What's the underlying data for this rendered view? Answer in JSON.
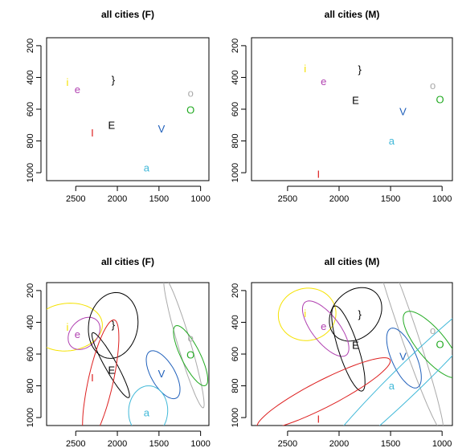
{
  "chart_data": [
    {
      "type": "scatter",
      "title": "all cities (F)",
      "xlim": [
        2850,
        900
      ],
      "ylim": [
        1050,
        150
      ],
      "x_ticks": [
        2500,
        2000,
        1500,
        1000
      ],
      "y_ticks": [
        200,
        400,
        600,
        800,
        1000
      ],
      "points": [
        {
          "label": "i",
          "x": 2600,
          "y": 430,
          "color": "#f5e200"
        },
        {
          "label": "e",
          "x": 2480,
          "y": 475,
          "color": "#b040b0"
        },
        {
          "label": "}",
          "x": 2050,
          "y": 415,
          "color": "#000000"
        },
        {
          "label": "o",
          "x": 1120,
          "y": 500,
          "color": "#aaaaaa"
        },
        {
          "label": "O",
          "x": 1120,
          "y": 605,
          "color": "#22aa22"
        },
        {
          "label": "E",
          "x": 2070,
          "y": 700,
          "color": "#000000"
        },
        {
          "label": "I",
          "x": 2300,
          "y": 750,
          "color": "#dd2020"
        },
        {
          "label": "V",
          "x": 1470,
          "y": 725,
          "color": "#2060bb"
        },
        {
          "label": "a",
          "x": 1650,
          "y": 970,
          "color": "#40b8d8"
        }
      ],
      "ellipses": []
    },
    {
      "type": "scatter",
      "title": "all cities (M)",
      "xlim": [
        2850,
        900
      ],
      "ylim": [
        1050,
        150
      ],
      "x_ticks": [
        2500,
        2000,
        1500,
        1000
      ],
      "y_ticks": [
        200,
        400,
        600,
        800,
        1000
      ],
      "points": [
        {
          "label": "i",
          "x": 2330,
          "y": 345,
          "color": "#f5e200"
        },
        {
          "label": "}",
          "x": 1800,
          "y": 350,
          "color": "#000000"
        },
        {
          "label": "e",
          "x": 2150,
          "y": 425,
          "color": "#b040b0"
        },
        {
          "label": "o",
          "x": 1090,
          "y": 450,
          "color": "#aaaaaa"
        },
        {
          "label": "E",
          "x": 1840,
          "y": 545,
          "color": "#000000"
        },
        {
          "label": "O",
          "x": 1020,
          "y": 540,
          "color": "#22aa22"
        },
        {
          "label": "V",
          "x": 1380,
          "y": 615,
          "color": "#2060bb"
        },
        {
          "label": "a",
          "x": 1490,
          "y": 800,
          "color": "#40b8d8"
        },
        {
          "label": "I",
          "x": 2200,
          "y": 1010,
          "color": "#dd2020"
        }
      ],
      "ellipses": []
    },
    {
      "type": "scatter",
      "title": "all cities (F)",
      "xlim": [
        2850,
        900
      ],
      "ylim": [
        1050,
        150
      ],
      "x_ticks": [
        2500,
        2000,
        1500,
        1000
      ],
      "y_ticks": [
        200,
        400,
        600,
        800,
        1000
      ],
      "points": [
        {
          "label": "i",
          "x": 2600,
          "y": 430,
          "color": "#f5e200"
        },
        {
          "label": "e",
          "x": 2480,
          "y": 475,
          "color": "#b040b0"
        },
        {
          "label": "}",
          "x": 2050,
          "y": 415,
          "color": "#000000"
        },
        {
          "label": "o",
          "x": 1120,
          "y": 500,
          "color": "#aaaaaa"
        },
        {
          "label": "O",
          "x": 1120,
          "y": 605,
          "color": "#22aa22"
        },
        {
          "label": "E",
          "x": 2070,
          "y": 700,
          "color": "#000000"
        },
        {
          "label": "I",
          "x": 2300,
          "y": 750,
          "color": "#dd2020"
        },
        {
          "label": "V",
          "x": 1470,
          "y": 725,
          "color": "#2060bb"
        },
        {
          "label": "a",
          "x": 1650,
          "y": 970,
          "color": "#40b8d8"
        }
      ],
      "ellipses": [
        {
          "label": "i",
          "cx": 2600,
          "cy": 430,
          "ra": 150,
          "rb": 420,
          "angle": 88,
          "color": "#f5e200"
        },
        {
          "label": "e",
          "cx": 2400,
          "cy": 470,
          "ra": 95,
          "rb": 195,
          "angle": 78,
          "color": "#b040b0"
        },
        {
          "label": "}",
          "cx": 2050,
          "cy": 420,
          "ra": 205,
          "rb": 300,
          "angle": 82,
          "color": "#000000"
        },
        {
          "label": "o",
          "cx": 1200,
          "cy": 530,
          "ra": 70,
          "rb": 470,
          "angle": -30,
          "color": "#aaaaaa"
        },
        {
          "label": "O",
          "cx": 1120,
          "cy": 610,
          "ra": 90,
          "rb": 265,
          "angle": -48,
          "color": "#22aa22"
        },
        {
          "label": "E",
          "cx": 2080,
          "cy": 670,
          "ra": 55,
          "rb": 300,
          "angle": -48,
          "color": "#000000"
        },
        {
          "label": "I",
          "cx": 2200,
          "cy": 770,
          "ra": 140,
          "rb": 420,
          "angle": 25,
          "color": "#dd2020"
        },
        {
          "label": "V",
          "cx": 1450,
          "cy": 730,
          "ra": 105,
          "rb": 230,
          "angle": -58,
          "color": "#2060bb"
        },
        {
          "label": "a",
          "cx": 1630,
          "cy": 960,
          "ra": 160,
          "rb": 235,
          "angle": 88,
          "color": "#40b8d8"
        }
      ]
    },
    {
      "type": "scatter",
      "title": "all cities (M)",
      "xlim": [
        2850,
        900
      ],
      "ylim": [
        1050,
        150
      ],
      "x_ticks": [
        2500,
        2000,
        1500,
        1000
      ],
      "y_ticks": [
        200,
        400,
        600,
        800,
        1000
      ],
      "points": [
        {
          "label": "i",
          "x": 2330,
          "y": 345,
          "color": "#f5e200"
        },
        {
          "label": "}",
          "x": 1800,
          "y": 350,
          "color": "#000000"
        },
        {
          "label": "e",
          "x": 2150,
          "y": 425,
          "color": "#b040b0"
        },
        {
          "label": "o",
          "x": 1090,
          "y": 450,
          "color": "#aaaaaa"
        },
        {
          "label": "E",
          "x": 1840,
          "y": 545,
          "color": "#000000"
        },
        {
          "label": "O",
          "x": 1020,
          "y": 540,
          "color": "#22aa22"
        },
        {
          "label": "V",
          "x": 1380,
          "y": 615,
          "color": "#2060bb"
        },
        {
          "label": "a",
          "x": 1490,
          "y": 800,
          "color": "#40b8d8"
        },
        {
          "label": "I",
          "x": 2200,
          "y": 1010,
          "color": "#dd2020"
        }
      ],
      "ellipses": [
        {
          "label": "i",
          "cx": 2310,
          "cy": 350,
          "ra": 165,
          "rb": 280,
          "angle": 88,
          "color": "#f5e200"
        },
        {
          "label": "}",
          "cx": 1840,
          "cy": 350,
          "ra": 160,
          "rb": 260,
          "angle": 75,
          "color": "#000000"
        },
        {
          "label": "e",
          "cx": 2130,
          "cy": 440,
          "ra": 105,
          "rb": 265,
          "angle": -55,
          "color": "#b040b0"
        },
        {
          "label": "o",
          "cx": 1350,
          "cy": 420,
          "ra": 75,
          "rb": 760,
          "angle": -28,
          "color": "#aaaaaa"
        },
        {
          "label": "E",
          "cx": 1910,
          "cy": 565,
          "ra": 90,
          "rb": 300,
          "angle": -28,
          "color": "#000000"
        },
        {
          "label": "O",
          "cx": 1100,
          "cy": 540,
          "ra": 110,
          "rb": 330,
          "angle": -55,
          "color": "#22aa22"
        },
        {
          "label": "V",
          "cx": 1370,
          "cy": 625,
          "ra": 105,
          "rb": 230,
          "angle": -40,
          "color": "#2060bb"
        },
        {
          "label": "I",
          "cx": 2150,
          "cy": 850,
          "ra": 90,
          "rb": 680,
          "angle": 72,
          "color": "#dd2020"
        },
        {
          "label": "a",
          "cx": 1300,
          "cy": 740,
          "ra": 110,
          "rb": 1100,
          "angle": 58,
          "color": "#40b8d8"
        }
      ]
    }
  ]
}
